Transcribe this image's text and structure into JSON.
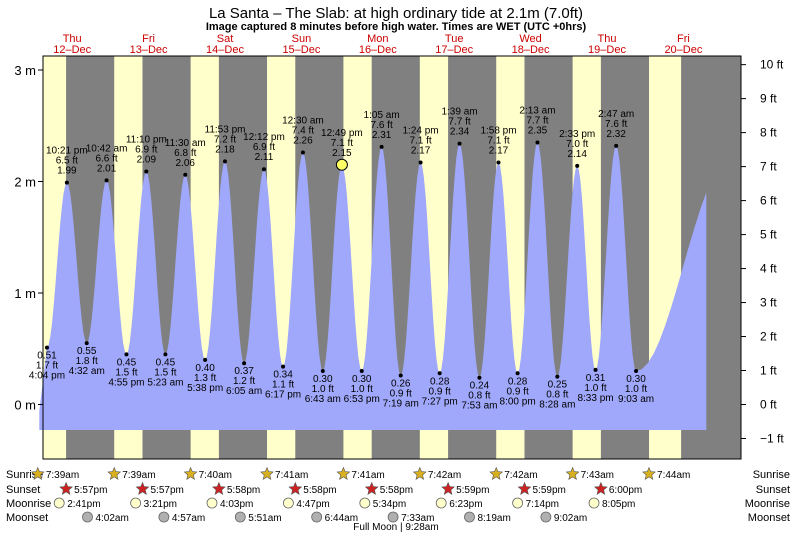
{
  "chart_data": {
    "type": "area",
    "title": "La Santa – The Slab: at high  ordinary tide at 2.1m (7.0ft)",
    "subtitle": "Image captured 8 minutes before high water. Times are WET (UTC +0hrs)",
    "days": [
      {
        "dow": "Thu",
        "date": "12–Dec"
      },
      {
        "dow": "Fri",
        "date": "13–Dec"
      },
      {
        "dow": "Sat",
        "date": "14–Dec"
      },
      {
        "dow": "Sun",
        "date": "15–Dec"
      },
      {
        "dow": "Mon",
        "date": "16–Dec"
      },
      {
        "dow": "Tue",
        "date": "17–Dec"
      },
      {
        "dow": "Wed",
        "date": "18–Dec"
      },
      {
        "dow": "Thu",
        "date": "19–Dec"
      },
      {
        "dow": "Fri",
        "date": "20–Dec"
      }
    ],
    "ylim_m": [
      -0.45,
      3.2
    ],
    "yticks_m": [
      "0 m",
      "1 m",
      "2 m",
      "3 m"
    ],
    "yticks_ft": [
      "−1 ft",
      "0 ft",
      "1 ft",
      "2 ft",
      "3 ft",
      "4 ft",
      "5 ft",
      "6 ft",
      "7 ft",
      "8 ft",
      "9 ft",
      "10 ft"
    ],
    "unit_m": "m",
    "unit_ft": "ft",
    "tides": [
      {
        "t": 0.17,
        "time": "4:04 pm",
        "m": "0.51",
        "ft": "1.7 ft",
        "v": 0.51,
        "type": "low"
      },
      {
        "t": 0.43,
        "time": "10:21 pm",
        "m": "1.99",
        "ft": "6.5 ft",
        "v": 1.99,
        "type": "high"
      },
      {
        "t": 0.69,
        "time": "4:32 am",
        "m": "0.55",
        "ft": "1.8 ft",
        "v": 0.55,
        "type": "low"
      },
      {
        "t": 0.95,
        "time": "10:42 am",
        "m": "2.01",
        "ft": "6.6 ft",
        "v": 2.01,
        "type": "high"
      },
      {
        "t": 1.21,
        "time": "4:55 pm",
        "m": "0.45",
        "ft": "1.5 ft",
        "v": 0.45,
        "type": "low"
      },
      {
        "t": 1.47,
        "time": "11:10 pm",
        "m": "2.09",
        "ft": "6.9 ft",
        "v": 2.09,
        "type": "high"
      },
      {
        "t": 1.72,
        "time": "5:23 am",
        "m": "0.45",
        "ft": "1.5 ft",
        "v": 0.45,
        "type": "low"
      },
      {
        "t": 1.98,
        "time": "11:30 am",
        "m": "2.06",
        "ft": "6.8 ft",
        "v": 2.06,
        "type": "high"
      },
      {
        "t": 2.24,
        "time": "5:38 pm",
        "m": "0.40",
        "ft": "1.3 ft",
        "v": 0.4,
        "type": "low"
      },
      {
        "t": 2.5,
        "time": "11:53 pm",
        "m": "2.18",
        "ft": "7.2 ft",
        "v": 2.18,
        "type": "high"
      },
      {
        "t": 2.75,
        "time": "6:05 am",
        "m": "0.37",
        "ft": "1.2 ft",
        "v": 0.37,
        "type": "low"
      },
      {
        "t": 3.01,
        "time": "12:12 pm",
        "m": "2.11",
        "ft": "6.9 ft",
        "v": 2.11,
        "type": "high"
      },
      {
        "t": 3.26,
        "time": "6:17 pm",
        "m": "0.34",
        "ft": "1.1 ft",
        "v": 0.34,
        "type": "low"
      },
      {
        "t": 3.52,
        "time": "12:30 am",
        "m": "2.26",
        "ft": "7.4 ft",
        "v": 2.26,
        "type": "high"
      },
      {
        "t": 3.78,
        "time": "6:43 am",
        "m": "0.30",
        "ft": "1.0 ft",
        "v": 0.3,
        "type": "low"
      },
      {
        "t": 4.03,
        "time": "12:49 pm",
        "m": "2.15",
        "ft": "7.1 ft",
        "v": 2.15,
        "type": "high",
        "current": true
      },
      {
        "t": 4.29,
        "time": "6:53 pm",
        "m": "0.30",
        "ft": "1.0 ft",
        "v": 0.3,
        "type": "low"
      },
      {
        "t": 4.55,
        "time": "1:05 am",
        "m": "2.31",
        "ft": "7.6 ft",
        "v": 2.31,
        "type": "high"
      },
      {
        "t": 4.8,
        "time": "7:19 am",
        "m": "0.26",
        "ft": "0.9 ft",
        "v": 0.26,
        "type": "low"
      },
      {
        "t": 5.06,
        "time": "1:24 pm",
        "m": "2.17",
        "ft": "7.1 ft",
        "v": 2.17,
        "type": "high"
      },
      {
        "t": 5.31,
        "time": "7:27 pm",
        "m": "0.28",
        "ft": "0.9 ft",
        "v": 0.28,
        "type": "low"
      },
      {
        "t": 5.57,
        "time": "1:39 am",
        "m": "2.34",
        "ft": "7.7 ft",
        "v": 2.34,
        "type": "high"
      },
      {
        "t": 5.83,
        "time": "7:53 am",
        "m": "0.24",
        "ft": "0.8 ft",
        "v": 0.24,
        "type": "low"
      },
      {
        "t": 6.08,
        "time": "1:58 pm",
        "m": "2.17",
        "ft": "7.1 ft",
        "v": 2.17,
        "type": "high"
      },
      {
        "t": 6.33,
        "time": "8:00 pm",
        "m": "0.28",
        "ft": "0.9 ft",
        "v": 0.28,
        "type": "low"
      },
      {
        "t": 6.59,
        "time": "2:13 am",
        "m": "2.35",
        "ft": "7.7 ft",
        "v": 2.35,
        "type": "high"
      },
      {
        "t": 6.85,
        "time": "8:28 am",
        "m": "0.25",
        "ft": "0.8 ft",
        "v": 0.25,
        "type": "low"
      },
      {
        "t": 7.11,
        "time": "2:33 pm",
        "m": "2.14",
        "ft": "7.0 ft",
        "v": 2.14,
        "type": "high"
      },
      {
        "t": 7.35,
        "time": "8:33 pm",
        "m": "0.31",
        "ft": "1.0 ft",
        "v": 0.31,
        "type": "low"
      },
      {
        "t": 7.62,
        "time": "2:47 am",
        "m": "2.32",
        "ft": "7.6 ft",
        "v": 2.32,
        "type": "high"
      },
      {
        "t": 7.88,
        "time": "9:03 am",
        "m": "0.30",
        "ft": "1.0 ft",
        "v": 0.3,
        "type": "low"
      }
    ],
    "rows": [
      {
        "label": "Sunrise",
        "kind": "sunrise",
        "items": [
          {
            "t": 0.05,
            "time": "7:39am"
          },
          {
            "t": 1.05,
            "time": "7:39am"
          },
          {
            "t": 2.05,
            "time": "7:40am"
          },
          {
            "t": 3.05,
            "time": "7:41am"
          },
          {
            "t": 4.05,
            "time": "7:41am"
          },
          {
            "t": 5.05,
            "time": "7:42am"
          },
          {
            "t": 6.05,
            "time": "7:42am"
          },
          {
            "t": 7.05,
            "time": "7:43am"
          },
          {
            "t": 8.05,
            "time": "7:44am"
          }
        ]
      },
      {
        "label": "Sunset",
        "kind": "sunset",
        "items": [
          {
            "t": 0.42,
            "time": "5:57pm"
          },
          {
            "t": 1.42,
            "time": "5:57pm"
          },
          {
            "t": 2.42,
            "time": "5:58pm"
          },
          {
            "t": 3.42,
            "time": "5:58pm"
          },
          {
            "t": 4.42,
            "time": "5:58pm"
          },
          {
            "t": 5.42,
            "time": "5:59pm"
          },
          {
            "t": 6.42,
            "time": "5:59pm"
          },
          {
            "t": 7.42,
            "time": "6:00pm"
          }
        ]
      },
      {
        "label": "Moonrise",
        "kind": "moonrise",
        "items": [
          {
            "t": 0.33,
            "time": "2:41pm"
          },
          {
            "t": 1.33,
            "time": "3:21pm"
          },
          {
            "t": 2.33,
            "time": "4:03pm"
          },
          {
            "t": 3.33,
            "time": "4:47pm"
          },
          {
            "t": 4.33,
            "time": "5:34pm"
          },
          {
            "t": 5.33,
            "time": "6:23pm"
          },
          {
            "t": 6.33,
            "time": "7:14pm"
          },
          {
            "t": 7.33,
            "time": "8:05pm"
          }
        ]
      },
      {
        "label": "Moonset",
        "kind": "moonset",
        "items": [
          {
            "t": 0.7,
            "time": "4:02am"
          },
          {
            "t": 1.7,
            "time": "4:57am"
          },
          {
            "t": 2.7,
            "time": "5:51am"
          },
          {
            "t": 3.7,
            "time": "6:44am"
          },
          {
            "t": 4.7,
            "time": "7:33am"
          },
          {
            "t": 5.7,
            "time": "8:19am"
          },
          {
            "t": 6.7,
            "time": "9:02am"
          }
        ]
      }
    ],
    "footer": "Full Moon | 9:28am",
    "colors": {
      "water": "#a0a8fb",
      "night": "#808080",
      "day": "#ffffcc",
      "day_name": "#cc0000",
      "current_marker": "#ffff66",
      "sunrise_star": "#d8b020",
      "sunset_star": "#cc2222",
      "moonrise": "#ffffcc",
      "moonset": "#b0b0b0"
    }
  }
}
